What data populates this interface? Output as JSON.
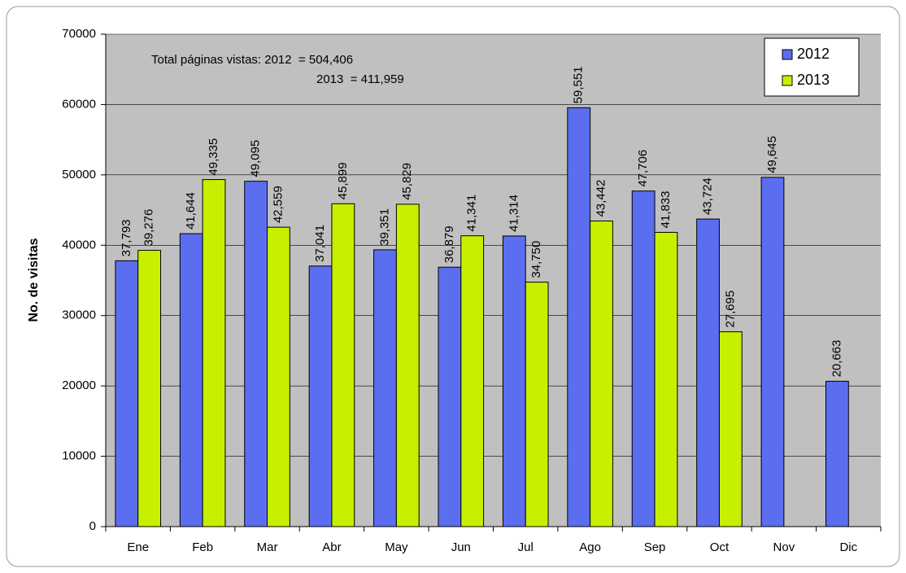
{
  "chart_data": {
    "type": "bar",
    "ylabel": "No. de visitas",
    "annotations": [
      "Total páginas vistas: 2012  = 504,406",
      "2013  = 411,959"
    ],
    "categories": [
      "Ene",
      "Feb",
      "Mar",
      "Abr",
      "May",
      "Jun",
      "Jul",
      "Ago",
      "Sep",
      "Oct",
      "Nov",
      "Dic"
    ],
    "series": [
      {
        "name": "2012",
        "color": "#5b6ef0",
        "values": [
          37793,
          41644,
          49095,
          37041,
          39351,
          36879,
          41314,
          59551,
          47706,
          43724,
          49645,
          20663
        ],
        "value_labels": [
          "37,793",
          "41,644",
          "49,095",
          "37,041",
          "39,351",
          "36,879",
          "41,314",
          "59,551",
          "47,706",
          "43,724",
          "49,645",
          "20,663"
        ]
      },
      {
        "name": "2013",
        "color": "#c6f000",
        "values": [
          39276,
          49335,
          42559,
          45899,
          45829,
          41341,
          34750,
          43442,
          41833,
          27695,
          null,
          null
        ],
        "value_labels": [
          "39,276",
          "49,335",
          "42,559",
          "45,899",
          "45,829",
          "41,341",
          "34,750",
          "43,442",
          "41,833",
          "27,695",
          null,
          null
        ]
      }
    ],
    "ylim": [
      0,
      70000
    ],
    "yticks": [
      0,
      10000,
      20000,
      30000,
      40000,
      50000,
      60000,
      70000
    ],
    "grid": true,
    "legend": "upper right"
  }
}
